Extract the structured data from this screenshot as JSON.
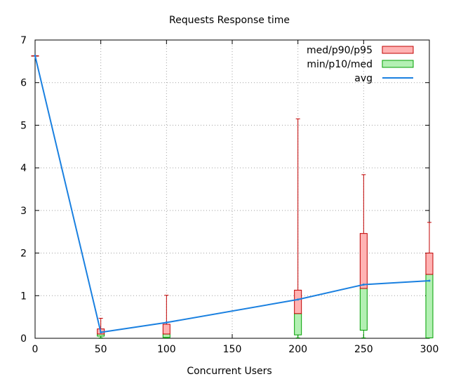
{
  "chart_data": {
    "type": "candlestick",
    "title": "Requests Response time",
    "xlabel": "Concurrent Users",
    "ylabel": "",
    "xlim": [
      0,
      300
    ],
    "ylim": [
      0,
      7
    ],
    "xticks": [
      0,
      50,
      100,
      150,
      200,
      250,
      300
    ],
    "yticks": [
      0,
      1,
      2,
      3,
      4,
      5,
      6,
      7
    ],
    "grid": true,
    "legend_position": "top-right",
    "legend": [
      {
        "label": "med/p90/p95",
        "color": "#ffb3b3",
        "border": "#c00000"
      },
      {
        "label": "min/p10/med",
        "color": "#b3f0b3",
        "border": "#00a000"
      },
      {
        "label": "avg",
        "color": "#1a80e0"
      }
    ],
    "series": [
      {
        "x": 0,
        "min": 6.63,
        "p10": 6.63,
        "med": 6.63,
        "p90": 6.63,
        "p95": 6.63,
        "avg": 6.63
      },
      {
        "x": 50,
        "min": 0.01,
        "p10": 0.05,
        "med": 0.1,
        "p90": 0.22,
        "p95": 0.47,
        "avg": 0.14
      },
      {
        "x": 100,
        "min": 0.01,
        "p10": 0.02,
        "med": 0.1,
        "p90": 0.33,
        "p95": 1.01,
        "avg": 0.37
      },
      {
        "x": 200,
        "min": 0.01,
        "p10": 0.08,
        "med": 0.58,
        "p90": 1.13,
        "p95": 5.15,
        "avg": 0.91
      },
      {
        "x": 250,
        "min": 0.01,
        "p10": 0.19,
        "med": 1.17,
        "p90": 2.46,
        "p95": 3.84,
        "avg": 1.26
      },
      {
        "x": 300,
        "min": 0.01,
        "p10": 0.01,
        "med": 1.5,
        "p90": 2.0,
        "p95": 2.72,
        "avg": 1.35
      }
    ]
  }
}
